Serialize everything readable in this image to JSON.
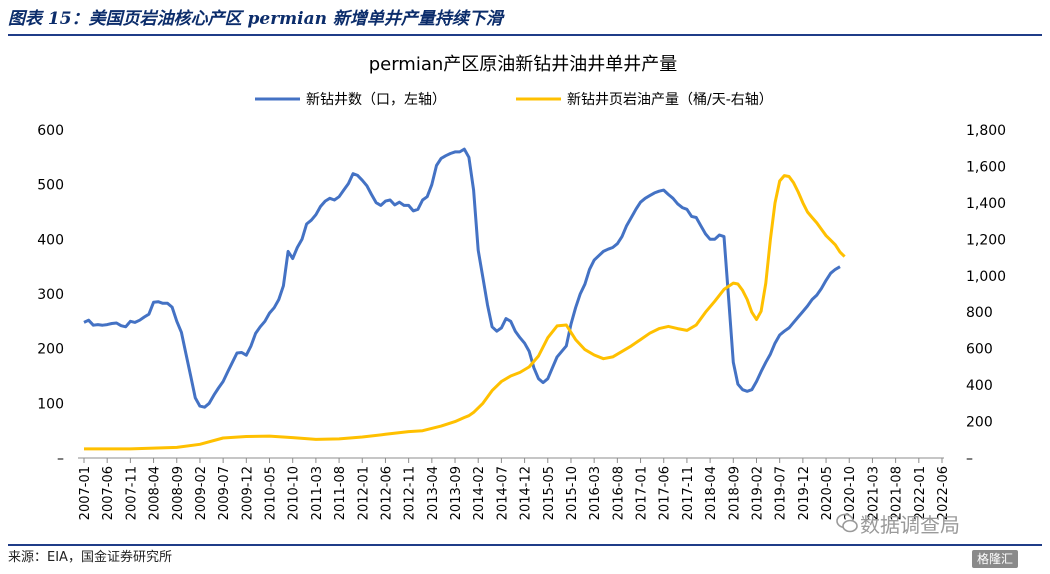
{
  "caption": "图表 15：美国页岩油核心产区 permian 新增单井产量持续下滑",
  "source": "来源：EIA，国金证券研究所",
  "watermark": "数据调查局",
  "corner_logo": "格隆汇",
  "colors": {
    "rig_line": "#4472C4",
    "output_line": "#FFC000",
    "caption_text": "#0c2d6b",
    "rule": "#1f3c88"
  },
  "chart_data": {
    "type": "line",
    "title": "permian产区原油新钻井油井单井产量",
    "legend_position": "top",
    "grid": false,
    "x_tick_labels": [
      "2007-01",
      "2007-06",
      "2007-11",
      "2008-04",
      "2008-09",
      "2009-02",
      "2009-07",
      "2009-12",
      "2010-05",
      "2010-10",
      "2011-03",
      "2011-08",
      "2012-01",
      "2012-06",
      "2012-11",
      "2013-04",
      "2013-09",
      "2014-02",
      "2014-07",
      "2014-12",
      "2015-05",
      "2015-10",
      "2016-03",
      "2016-08",
      "2017-01",
      "2017-06",
      "2017-11",
      "2018-04",
      "2018-09",
      "2019-02",
      "2019-07",
      "2019-12",
      "2020-05",
      "2020-10",
      "2021-03",
      "2021-08",
      "2022-01",
      "2022-06"
    ],
    "y_left": {
      "min": 0,
      "max": 600,
      "ticks": [
        "–",
        "100",
        "200",
        "300",
        "400",
        "500",
        "600"
      ]
    },
    "y_right": {
      "min": 0,
      "max": 1800,
      "ticks": [
        "–",
        "200",
        "400",
        "600",
        "800",
        "1,000",
        "1,200",
        "1,400",
        "1,600",
        "1,800"
      ]
    },
    "series": [
      {
        "name": "新钻井数（口，左轴）",
        "axis": "left",
        "color": "#4472C4",
        "points": [
          [
            0,
            248
          ],
          [
            1,
            252
          ],
          [
            2,
            243
          ],
          [
            3,
            244
          ],
          [
            4,
            243
          ],
          [
            5,
            244
          ],
          [
            6,
            246
          ],
          [
            7,
            247
          ],
          [
            8,
            242
          ],
          [
            9,
            240
          ],
          [
            10,
            250
          ],
          [
            11,
            248
          ],
          [
            12,
            252
          ],
          [
            13,
            258
          ],
          [
            14,
            263
          ],
          [
            15,
            285
          ],
          [
            16,
            286
          ],
          [
            17,
            283
          ],
          [
            18,
            283
          ],
          [
            19,
            276
          ],
          [
            20,
            250
          ],
          [
            21,
            230
          ],
          [
            22,
            190
          ],
          [
            23,
            150
          ],
          [
            24,
            110
          ],
          [
            25,
            95
          ],
          [
            26,
            93
          ],
          [
            27,
            100
          ],
          [
            28,
            115
          ],
          [
            29,
            128
          ],
          [
            30,
            140
          ],
          [
            31,
            158
          ],
          [
            32,
            175
          ],
          [
            33,
            192
          ],
          [
            34,
            193
          ],
          [
            35,
            188
          ],
          [
            36,
            205
          ],
          [
            37,
            228
          ],
          [
            38,
            240
          ],
          [
            39,
            250
          ],
          [
            40,
            265
          ],
          [
            41,
            275
          ],
          [
            42,
            290
          ],
          [
            43,
            315
          ],
          [
            44,
            378
          ],
          [
            45,
            365
          ],
          [
            46,
            385
          ],
          [
            47,
            400
          ],
          [
            48,
            428
          ],
          [
            49,
            435
          ],
          [
            50,
            445
          ],
          [
            51,
            460
          ],
          [
            52,
            470
          ],
          [
            53,
            475
          ],
          [
            54,
            472
          ],
          [
            55,
            478
          ],
          [
            56,
            490
          ],
          [
            57,
            502
          ],
          [
            58,
            520
          ],
          [
            59,
            517
          ],
          [
            60,
            508
          ],
          [
            61,
            498
          ],
          [
            62,
            482
          ],
          [
            63,
            467
          ],
          [
            64,
            462
          ],
          [
            65,
            470
          ],
          [
            66,
            472
          ],
          [
            67,
            463
          ],
          [
            68,
            468
          ],
          [
            69,
            462
          ],
          [
            70,
            462
          ],
          [
            71,
            452
          ],
          [
            72,
            455
          ],
          [
            73,
            472
          ],
          [
            74,
            478
          ],
          [
            75,
            500
          ],
          [
            76,
            535
          ],
          [
            77,
            548
          ],
          [
            78,
            553
          ],
          [
            79,
            557
          ],
          [
            80,
            560
          ],
          [
            81,
            560
          ],
          [
            82,
            565
          ],
          [
            83,
            550
          ],
          [
            84,
            490
          ],
          [
            85,
            380
          ],
          [
            86,
            330
          ],
          [
            87,
            280
          ],
          [
            88,
            240
          ],
          [
            89,
            232
          ],
          [
            90,
            238
          ],
          [
            91,
            255
          ],
          [
            92,
            250
          ],
          [
            93,
            232
          ],
          [
            94,
            220
          ],
          [
            95,
            210
          ],
          [
            96,
            195
          ],
          [
            97,
            165
          ],
          [
            98,
            145
          ],
          [
            99,
            138
          ],
          [
            100,
            145
          ],
          [
            101,
            165
          ],
          [
            102,
            185
          ],
          [
            103,
            195
          ],
          [
            104,
            205
          ],
          [
            105,
            245
          ],
          [
            106,
            275
          ],
          [
            107,
            300
          ],
          [
            108,
            318
          ],
          [
            109,
            345
          ],
          [
            110,
            362
          ],
          [
            111,
            370
          ],
          [
            112,
            378
          ],
          [
            113,
            382
          ],
          [
            114,
            385
          ],
          [
            115,
            392
          ],
          [
            116,
            405
          ],
          [
            117,
            425
          ],
          [
            118,
            440
          ],
          [
            119,
            455
          ],
          [
            120,
            468
          ],
          [
            121,
            475
          ],
          [
            122,
            480
          ],
          [
            123,
            485
          ],
          [
            124,
            488
          ],
          [
            125,
            490
          ],
          [
            126,
            482
          ],
          [
            127,
            475
          ],
          [
            128,
            465
          ],
          [
            129,
            458
          ],
          [
            130,
            455
          ],
          [
            131,
            442
          ],
          [
            132,
            440
          ],
          [
            133,
            425
          ],
          [
            134,
            410
          ],
          [
            135,
            400
          ],
          [
            136,
            400
          ],
          [
            137,
            408
          ],
          [
            138,
            405
          ],
          [
            139,
            290
          ],
          [
            140,
            175
          ],
          [
            141,
            135
          ],
          [
            142,
            125
          ],
          [
            143,
            122
          ],
          [
            144,
            125
          ],
          [
            145,
            140
          ],
          [
            146,
            158
          ],
          [
            147,
            175
          ],
          [
            148,
            190
          ],
          [
            149,
            210
          ],
          [
            150,
            225
          ],
          [
            151,
            232
          ],
          [
            152,
            238
          ],
          [
            153,
            248
          ],
          [
            154,
            258
          ],
          [
            155,
            268
          ],
          [
            156,
            278
          ],
          [
            157,
            290
          ],
          [
            158,
            298
          ],
          [
            159,
            310
          ],
          [
            160,
            325
          ],
          [
            161,
            338
          ],
          [
            162,
            345
          ],
          [
            163,
            350
          ]
        ]
      },
      {
        "name": "新钻井页岩油产量（桶/天-右轴）",
        "axis": "right",
        "color": "#FFC000",
        "points": [
          [
            0,
            50
          ],
          [
            10,
            50
          ],
          [
            20,
            58
          ],
          [
            25,
            75
          ],
          [
            30,
            110
          ],
          [
            35,
            118
          ],
          [
            40,
            120
          ],
          [
            45,
            112
          ],
          [
            50,
            102
          ],
          [
            55,
            105
          ],
          [
            60,
            115
          ],
          [
            65,
            130
          ],
          [
            70,
            145
          ],
          [
            73,
            150
          ],
          [
            77,
            175
          ],
          [
            80,
            200
          ],
          [
            82,
            222
          ],
          [
            83,
            232
          ],
          [
            84,
            250
          ],
          [
            86,
            300
          ],
          [
            88,
            370
          ],
          [
            90,
            420
          ],
          [
            92,
            450
          ],
          [
            94,
            470
          ],
          [
            96,
            500
          ],
          [
            98,
            560
          ],
          [
            100,
            660
          ],
          [
            102,
            725
          ],
          [
            104,
            730
          ],
          [
            106,
            650
          ],
          [
            108,
            595
          ],
          [
            110,
            565
          ],
          [
            112,
            545
          ],
          [
            114,
            555
          ],
          [
            116,
            585
          ],
          [
            118,
            615
          ],
          [
            120,
            650
          ],
          [
            122,
            685
          ],
          [
            124,
            710
          ],
          [
            126,
            722
          ],
          [
            128,
            710
          ],
          [
            130,
            700
          ],
          [
            132,
            730
          ],
          [
            134,
            800
          ],
          [
            136,
            860
          ],
          [
            138,
            925
          ],
          [
            140,
            960
          ],
          [
            141,
            955
          ],
          [
            142,
            920
          ],
          [
            143,
            870
          ],
          [
            144,
            800
          ],
          [
            145,
            760
          ],
          [
            146,
            805
          ],
          [
            147,
            960
          ],
          [
            148,
            1200
          ],
          [
            149,
            1400
          ],
          [
            150,
            1520
          ],
          [
            151,
            1550
          ],
          [
            152,
            1545
          ],
          [
            153,
            1510
          ],
          [
            154,
            1460
          ],
          [
            155,
            1400
          ],
          [
            156,
            1350
          ],
          [
            157,
            1320
          ],
          [
            158,
            1290
          ],
          [
            159,
            1255
          ],
          [
            160,
            1220
          ],
          [
            161,
            1195
          ],
          [
            162,
            1170
          ],
          [
            163,
            1130
          ],
          [
            164,
            1105
          ]
        ]
      }
    ]
  }
}
